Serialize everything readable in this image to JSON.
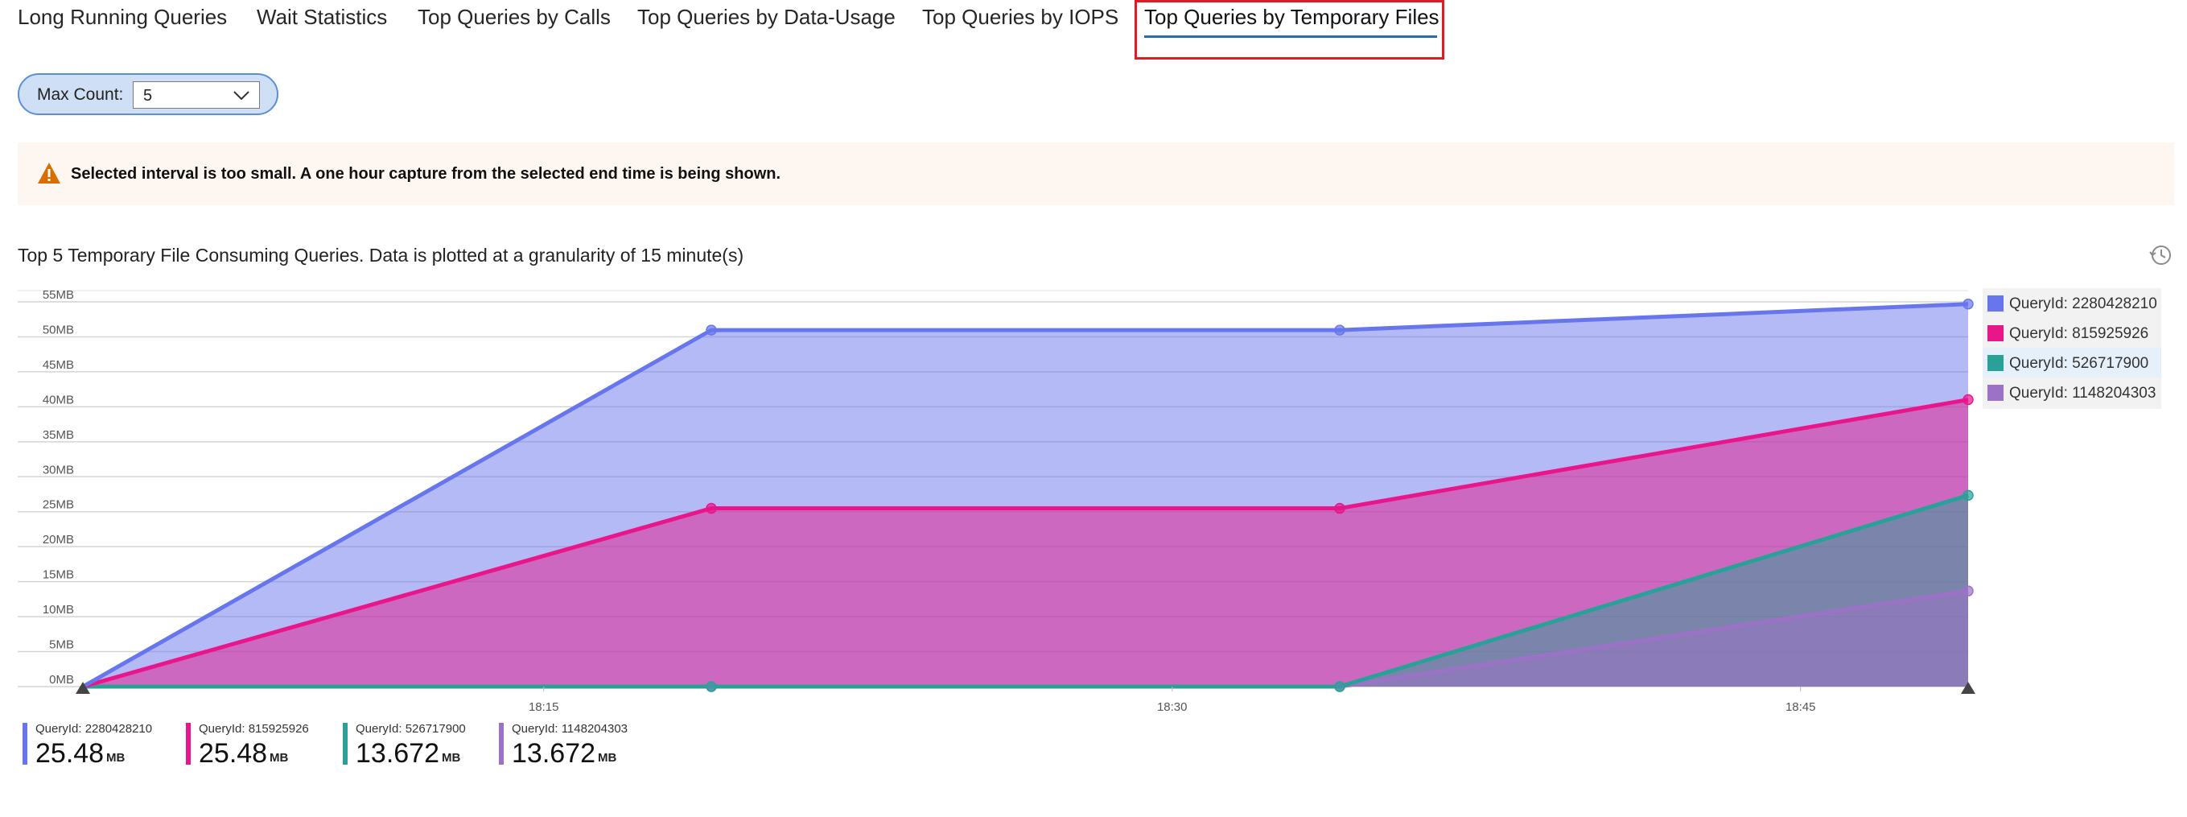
{
  "tabs": [
    {
      "label": "Long Running Queries"
    },
    {
      "label": "Wait Statistics"
    },
    {
      "label": "Top Queries by Calls"
    },
    {
      "label": "Top Queries by Data-Usage"
    },
    {
      "label": "Top Queries by IOPS"
    },
    {
      "label": "Top Queries by Temporary Files"
    }
  ],
  "active_tab": "Top Queries by Temporary Files",
  "max_count": {
    "label": "Max Count:",
    "value": "5"
  },
  "warning": {
    "text": "Selected interval is too small. A one hour capture from the selected end time is being shown."
  },
  "chart_title": "Top 5 Temporary File Consuming Queries. Data is plotted at a granularity of 15 minute(s)",
  "colors": {
    "accent": "#2b6cb0",
    "highlight": "#e01b24",
    "warning": "#d96d00"
  },
  "chart_data": {
    "type": "area",
    "stacked": true,
    "x": [
      "18:04",
      "18:19",
      "18:34",
      "18:49"
    ],
    "x_tick_labels": [
      "18:15",
      "18:30",
      "18:45"
    ],
    "y_tick_labels": [
      "0MB",
      "5MB",
      "10MB",
      "15MB",
      "20MB",
      "25MB",
      "30MB",
      "35MB",
      "40MB",
      "45MB",
      "50MB",
      "55MB"
    ],
    "ylim": [
      0,
      55
    ],
    "y_unit": "MB",
    "grid": true,
    "legend_position": "right",
    "series": [
      {
        "name": "QueryId: 1148204303",
        "color": "#9b72c6",
        "values": [
          0,
          0,
          0,
          13.672
        ]
      },
      {
        "name": "QueryId: 526717900",
        "color": "#2aa198",
        "values": [
          0,
          0,
          0,
          13.672
        ]
      },
      {
        "name": "QueryId: 815925926",
        "color": "#e8168a",
        "values": [
          0,
          25.48,
          25.48,
          13.672
        ]
      },
      {
        "name": "QueryId: 2280428210",
        "color": "#6876ee",
        "values": [
          0,
          25.48,
          25.48,
          13.672
        ]
      }
    ]
  },
  "legend": [
    {
      "label": "QueryId: 2280428210",
      "color": "#6876ee"
    },
    {
      "label": "QueryId: 815925926",
      "color": "#e8168a"
    },
    {
      "label": "QueryId: 526717900",
      "color": "#2aa198"
    },
    {
      "label": "QueryId: 1148204303",
      "color": "#9b72c6"
    }
  ],
  "summary": [
    {
      "name": "QueryId: 2280428210",
      "value": "25.48",
      "unit": "MB",
      "color": "#6876ee"
    },
    {
      "name": "QueryId: 815925926",
      "value": "25.48",
      "unit": "MB",
      "color": "#e8168a"
    },
    {
      "name": "QueryId: 526717900",
      "value": "13.672",
      "unit": "MB",
      "color": "#2aa198"
    },
    {
      "name": "QueryId: 1148204303",
      "value": "13.672",
      "unit": "MB",
      "color": "#9b72c6"
    }
  ]
}
